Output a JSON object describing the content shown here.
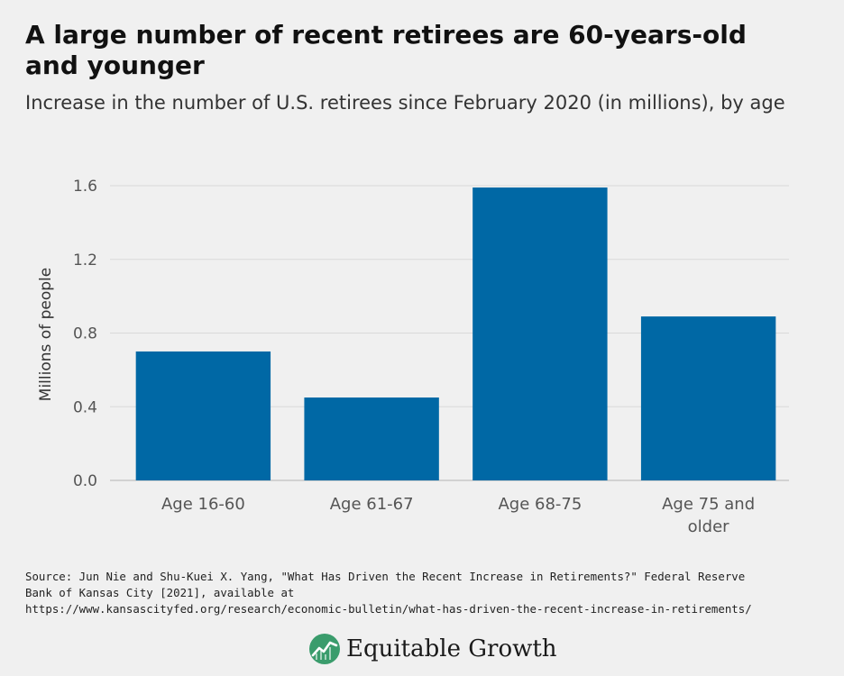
{
  "title": "A large number of recent retirees are  60-years-old and younger",
  "subtitle": "Increase in the number of U.S. retirees since February 2020 (in millions), by age",
  "source": {
    "line1": "Source: Jun Nie and Shu-Kuei X. Yang, \"What Has Driven the Recent Increase in Retirements?\" Federal Reserve",
    "line2": "Bank of Kansas City [2021], available at",
    "line3": "https://www.kansascityfed.org/research/economic-bulletin/what-has-driven-the-recent-increase-in-retirements/"
  },
  "logo": {
    "text": "Equitable Growth",
    "icon": "equitable-growth-logo-icon"
  },
  "colors": {
    "bar": "#0068a5",
    "background": "#f0f0f0",
    "grid": "#d9d9d9",
    "logo_green": "#3a9c6c"
  },
  "chart_data": {
    "type": "bar",
    "categories": [
      [
        "Age 16-60"
      ],
      [
        "Age 61-67"
      ],
      [
        "Age 68-75"
      ],
      [
        "Age 75 and",
        "older"
      ]
    ],
    "values": [
      0.7,
      0.45,
      1.59,
      0.89
    ],
    "ylabel": "Millions of people",
    "xlabel": "",
    "ylim": [
      0,
      1.6
    ],
    "yticks": [
      "0.0",
      "0.4",
      "0.8",
      "1.2",
      "1.6"
    ],
    "grid": true
  }
}
